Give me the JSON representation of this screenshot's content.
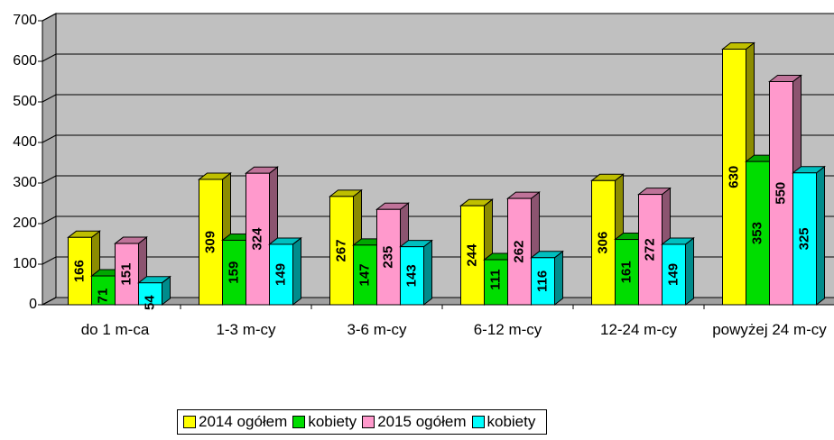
{
  "chart_data": {
    "type": "bar",
    "categories": [
      "do 1 m-ca",
      "1-3 m-cy",
      "3-6 m-cy",
      "6-12 m-cy",
      "12-24 m-cy",
      "powyżej 24 m-cy"
    ],
    "series": [
      {
        "name": "2014 ogółem",
        "color": "#ffff00",
        "values": [
          166,
          309,
          267,
          244,
          306,
          630
        ]
      },
      {
        "name": "kobiety",
        "color": "#00dd00",
        "values": [
          71,
          159,
          147,
          111,
          161,
          353
        ]
      },
      {
        "name": "2015 ogółem",
        "color": "#ff99cc",
        "values": [
          151,
          324,
          235,
          262,
          272,
          550
        ]
      },
      {
        "name": "kobiety",
        "color": "#00ffff",
        "values": [
          54,
          149,
          143,
          116,
          149,
          325
        ]
      }
    ],
    "ylim": [
      0,
      700
    ],
    "yticks": [
      0,
      100,
      200,
      300,
      400,
      500,
      600,
      700
    ],
    "grid": true,
    "legend": "bottom"
  }
}
